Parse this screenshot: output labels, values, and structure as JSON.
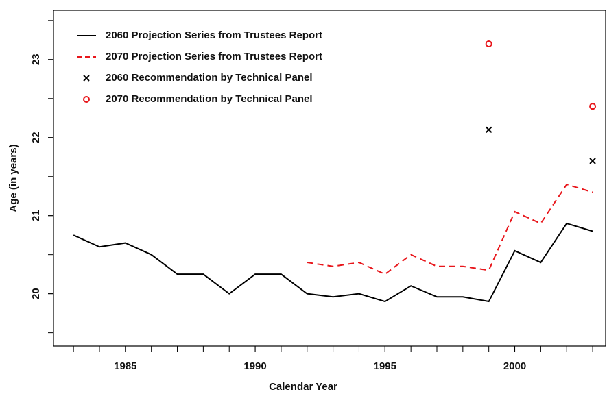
{
  "chart_data": {
    "type": "line",
    "xlabel": "Calendar Year",
    "ylabel": "Age (in years)",
    "x": [
      1983,
      1984,
      1985,
      1986,
      1987,
      1988,
      1989,
      1990,
      1991,
      1992,
      1993,
      1994,
      1995,
      1996,
      1997,
      1998,
      1999,
      2000,
      2001,
      2002,
      2003
    ],
    "series": [
      {
        "name": "2060  Projection Series from Trustees Report",
        "color": "#000000",
        "dash": false,
        "values": [
          20.75,
          20.6,
          20.65,
          20.5,
          20.25,
          20.25,
          20.0,
          20.25,
          20.25,
          20.0,
          19.96,
          20.0,
          19.9,
          20.1,
          19.96,
          19.96,
          19.9,
          20.55,
          20.4,
          20.9,
          20.8
        ]
      },
      {
        "name": "2070  Projection Series from Trustees Report",
        "color": "#e8161b",
        "dash": true,
        "values": [
          null,
          null,
          null,
          null,
          null,
          null,
          null,
          null,
          null,
          20.4,
          20.35,
          20.4,
          20.25,
          20.5,
          20.35,
          20.35,
          20.3,
          21.05,
          20.9,
          21.4,
          21.3
        ]
      }
    ],
    "points": [
      {
        "name": "2060  Recommendation by Technical Panel",
        "color": "#000000",
        "marker": "x",
        "x": [
          1999,
          2003
        ],
        "values": [
          22.1,
          21.7
        ]
      },
      {
        "name": "2070  Recommendation by Technical Panel",
        "color": "#e8161b",
        "marker": "o",
        "x": [
          1999,
          2003
        ],
        "values": [
          23.2,
          22.4
        ]
      }
    ],
    "xlim": [
      1982.23,
      2003.5
    ],
    "xticks": [
      1985,
      1990,
      1995,
      2000
    ],
    "x_minor_ticks": [
      1983,
      1984,
      1985,
      1986,
      1987,
      1988,
      1989,
      1990,
      1991,
      1992,
      1993,
      1994,
      1995,
      1996,
      1997,
      1998,
      1999,
      2000,
      2001,
      2002,
      2003
    ],
    "ylim": [
      19.33,
      23.63
    ],
    "yticks": [
      20,
      21,
      22,
      23
    ],
    "y_minor_ticks": [
      19.5,
      20,
      20.5,
      21,
      21.5,
      22,
      22.5,
      23,
      23.5
    ]
  }
}
